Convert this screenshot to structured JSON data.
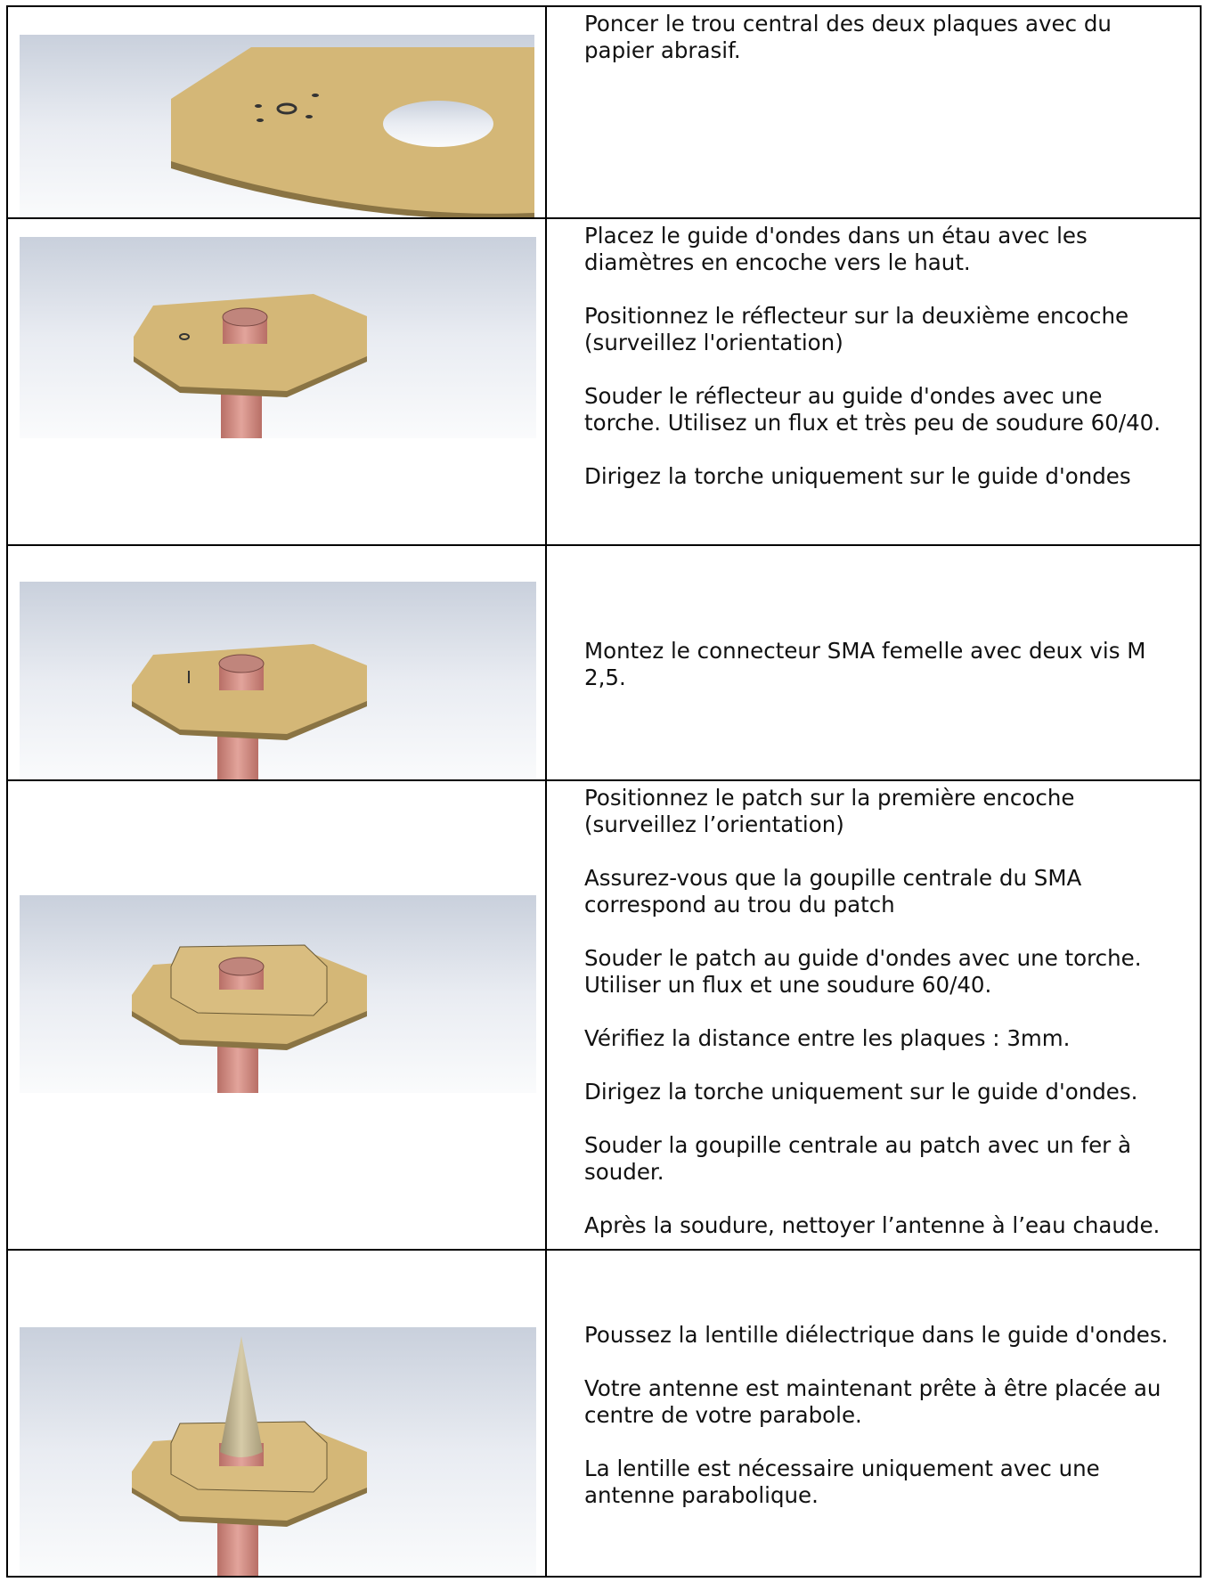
{
  "rows": [
    {
      "paragraphs": [
        "Poncer le trou central des deux plaques avec du papier abrasif."
      ]
    },
    {
      "paragraphs": [
        "Placez le guide d'ondes dans un étau avec les diamètres en encoche vers le haut.",
        "Positionnez le réflecteur sur la deuxième encoche (surveillez l'orientation)",
        "Souder le réflecteur au guide d'ondes avec une torche. Utilisez un flux et très peu de soudure 60/40.",
        "Dirigez la torche uniquement sur le guide d'ondes"
      ]
    },
    {
      "paragraphs": [
        "Montez le connecteur SMA femelle  avec deux vis M 2,5."
      ]
    },
    {
      "paragraphs": [
        "Positionnez le patch sur la première encoche (surveillez l’orientation)",
        "Assurez-vous que la goupille centrale du SMA correspond au trou du patch",
        "Souder le patch au guide d'ondes avec une torche. Utiliser un flux et une soudure 60/40.",
        "Vérifiez la distance entre les plaques : 3mm.",
        "Dirigez la torche uniquement sur le guide d'ondes.",
        "Souder la goupille centrale au patch avec un fer à souder.",
        "Après la soudure, nettoyer l’antenne à l’eau chaude."
      ]
    },
    {
      "paragraphs": [
        "Poussez la lentille diélectrique dans le guide d'ondes.",
        "Votre antenne est maintenant prête à être placée au centre de votre parabole.",
        "La lentille est nécessaire uniquement avec une antenne parabolique."
      ]
    }
  ]
}
